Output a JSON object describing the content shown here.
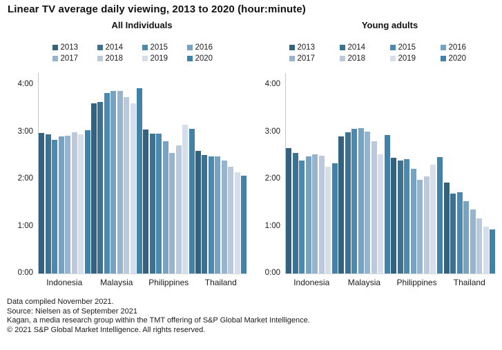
{
  "title": "Linear TV average daily viewing, 2013 to 2020 (hour:minute)",
  "footer": {
    "lines": [
      "Data compiled November 2021.",
      "Source: Nielsen as of September 2021",
      "Kagan, a media research group within the TMT offering of S&P Global Market Intelligence.",
      "© 2021 S&P Global Market Intelligence. All rights reserved."
    ]
  },
  "palette": {
    "2013": "#34617e",
    "2014": "#3d7192",
    "2015": "#4c89af",
    "2016": "#77a2c2",
    "2017": "#97b4ce",
    "2018": "#bac9dc",
    "2019": "#d5deea",
    "2020": "#4182a8"
  },
  "chart_data": [
    {
      "type": "bar",
      "title": "All Individuals",
      "unit": "hours (decimal) read off hour:minute axis",
      "categories": [
        "Indonesia",
        "Malaysia",
        "Philippines",
        "Thailand"
      ],
      "yticks": [
        "4:00",
        "3:00",
        "2:00",
        "1:00",
        "0:00"
      ],
      "ylim_hours": [
        0,
        4.2
      ],
      "grid": false,
      "legend_position": "top",
      "series": [
        {
          "name": "2013",
          "color": "#34617e",
          "values": [
            2.98,
            3.6,
            3.05,
            2.6
          ]
        },
        {
          "name": "2014",
          "color": "#3d7192",
          "values": [
            2.95,
            3.63,
            2.96,
            2.51
          ]
        },
        {
          "name": "2015",
          "color": "#4c89af",
          "values": [
            2.83,
            3.83,
            2.96,
            2.48
          ]
        },
        {
          "name": "2016",
          "color": "#77a2c2",
          "values": [
            2.9,
            3.87,
            2.8,
            2.48
          ]
        },
        {
          "name": "2017",
          "color": "#97b4ce",
          "values": [
            2.92,
            3.87,
            2.56,
            2.39
          ]
        },
        {
          "name": "2018",
          "color": "#bac9dc",
          "values": [
            3.0,
            3.74,
            2.72,
            2.27
          ]
        },
        {
          "name": "2019",
          "color": "#d5deea",
          "values": [
            2.95,
            3.6,
            3.15,
            2.15
          ]
        },
        {
          "name": "2020",
          "color": "#4182a8",
          "values": [
            3.03,
            3.93,
            3.07,
            2.08
          ]
        }
      ]
    },
    {
      "type": "bar",
      "title": "Young adults",
      "unit": "hours (decimal) read off hour:minute axis",
      "categories": [
        "Indonesia",
        "Malaysia",
        "Philippines",
        "Thailand"
      ],
      "yticks": [
        "4:00",
        "3:00",
        "2:00",
        "1:00",
        "0:00"
      ],
      "ylim_hours": [
        0,
        4.2
      ],
      "grid": false,
      "legend_position": "top",
      "series": [
        {
          "name": "2013",
          "color": "#34617e",
          "values": [
            2.66,
            2.91,
            2.46,
            1.93
          ]
        },
        {
          "name": "2014",
          "color": "#3d7192",
          "values": [
            2.56,
            2.99,
            2.39,
            1.69
          ]
        },
        {
          "name": "2015",
          "color": "#4c89af",
          "values": [
            2.4,
            3.07,
            2.42,
            1.73
          ]
        },
        {
          "name": "2016",
          "color": "#77a2c2",
          "values": [
            2.48,
            3.08,
            2.22,
            1.53
          ]
        },
        {
          "name": "2017",
          "color": "#97b4ce",
          "values": [
            2.53,
            3.01,
            1.99,
            1.36
          ]
        },
        {
          "name": "2018",
          "color": "#bac9dc",
          "values": [
            2.5,
            2.81,
            2.06,
            1.17
          ]
        },
        {
          "name": "2019",
          "color": "#d5deea",
          "values": [
            2.26,
            2.52,
            2.31,
            1.0
          ]
        },
        {
          "name": "2020",
          "color": "#4182a8",
          "values": [
            2.34,
            2.93,
            2.47,
            0.94
          ]
        }
      ]
    }
  ]
}
